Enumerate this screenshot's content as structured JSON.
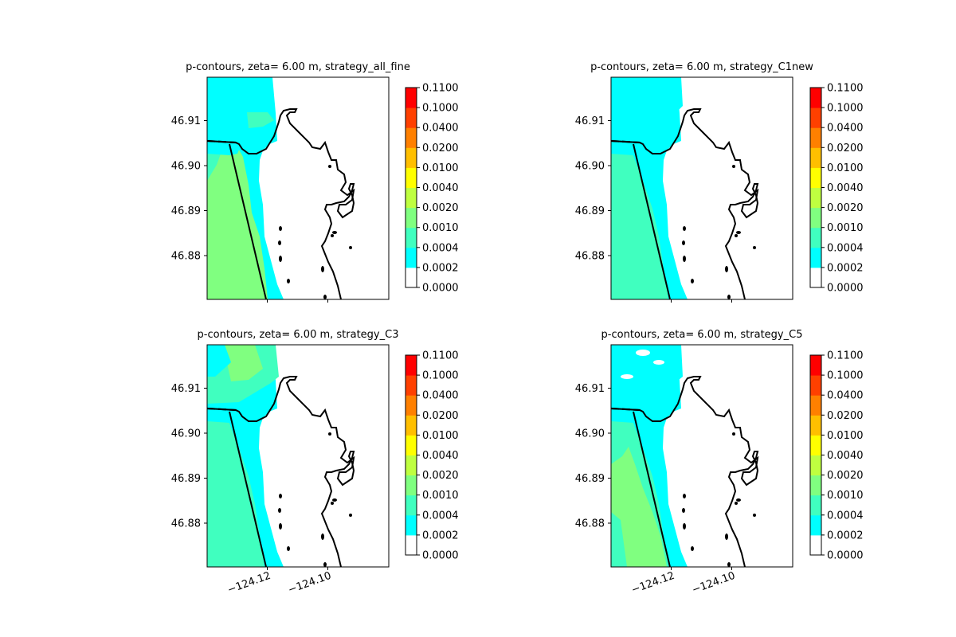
{
  "figure": {
    "x_tick_labels": [
      "−124.12",
      "−124.10"
    ]
  },
  "colorbar": {
    "levels": [
      "0.0000",
      "0.0002",
      "0.0004",
      "0.0010",
      "0.0020",
      "0.0040",
      "0.0100",
      "0.0200",
      "0.0400",
      "0.1000",
      "0.1100"
    ],
    "colors": [
      "#ffffff",
      "#00ffff",
      "#40ffbf",
      "#80ff80",
      "#bfff40",
      "#ffff00",
      "#ffbf00",
      "#ff8000",
      "#ff4000",
      "#ff0000"
    ]
  },
  "chart_data": [
    {
      "type": "heatmap",
      "title": "p-contours, zeta= 6.00 m, strategy_all_fine",
      "y_ticks": [
        46.88,
        46.89,
        46.9,
        46.91
      ],
      "y_tick_labels": [
        "46.88",
        "46.89",
        "46.90",
        "46.91"
      ],
      "x_ticks": [
        -124.12,
        -124.1
      ],
      "levels": [
        0.0,
        0.0002,
        0.0004,
        0.001,
        0.002,
        0.004,
        0.01,
        0.02,
        0.04,
        0.1,
        0.11
      ]
    },
    {
      "type": "heatmap",
      "title": "p-contours, zeta= 6.00 m, strategy_C1new",
      "y_ticks": [
        46.88,
        46.89,
        46.9,
        46.91
      ],
      "y_tick_labels": [
        "46.88",
        "46.89",
        "46.90",
        "46.91"
      ],
      "x_ticks": [
        -124.12,
        -124.1
      ],
      "levels": [
        0.0,
        0.0002,
        0.0004,
        0.001,
        0.002,
        0.004,
        0.01,
        0.02,
        0.04,
        0.1,
        0.11
      ]
    },
    {
      "type": "heatmap",
      "title": "p-contours, zeta= 6.00 m, strategy_C3",
      "y_ticks": [
        46.88,
        46.89,
        46.9,
        46.91
      ],
      "y_tick_labels": [
        "46.88",
        "46.89",
        "46.90",
        "46.91"
      ],
      "x_ticks": [
        -124.12,
        -124.1
      ],
      "x_tick_labels": [
        "−124.12",
        "−124.10"
      ],
      "levels": [
        0.0,
        0.0002,
        0.0004,
        0.001,
        0.002,
        0.004,
        0.01,
        0.02,
        0.04,
        0.1,
        0.11
      ]
    },
    {
      "type": "heatmap",
      "title": "p-contours, zeta= 6.00 m, strategy_C5",
      "y_ticks": [
        46.88,
        46.89,
        46.9,
        46.91
      ],
      "y_tick_labels": [
        "46.88",
        "46.89",
        "46.90",
        "46.91"
      ],
      "x_ticks": [
        -124.12,
        -124.1
      ],
      "x_tick_labels": [
        "−124.12",
        "−124.10"
      ],
      "levels": [
        0.0,
        0.0002,
        0.0004,
        0.001,
        0.002,
        0.004,
        0.01,
        0.02,
        0.04,
        0.1,
        0.11
      ]
    }
  ]
}
